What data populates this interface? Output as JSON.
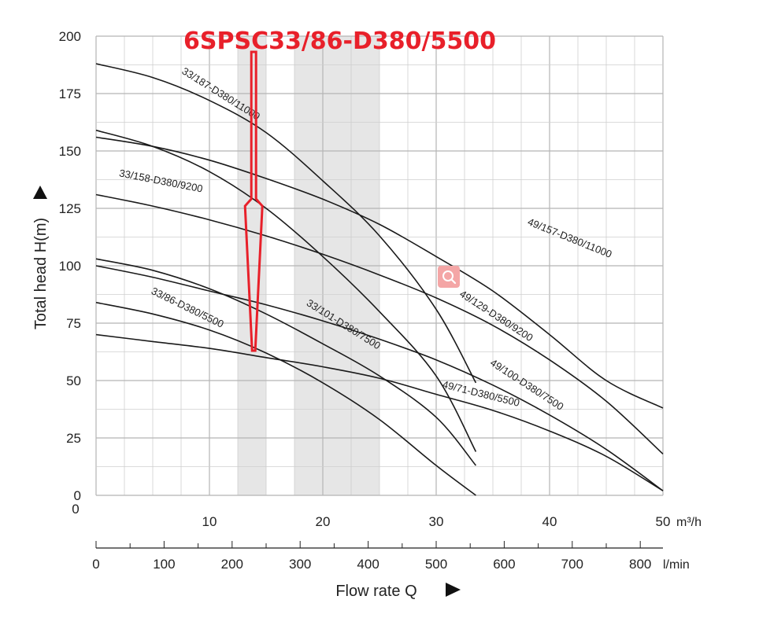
{
  "chart_data": {
    "type": "line",
    "title": "6SPSC33/86-D380/5500",
    "ylabel": "Total head H(m)",
    "xlabel": "Flow rate Q",
    "x_unit": "m³/h",
    "x2_unit": "l/min",
    "xlim": [
      0,
      50
    ],
    "ylim": [
      0,
      200
    ],
    "x_ticks": [
      0,
      10,
      20,
      30,
      40,
      50
    ],
    "x_tick_labels": [
      "10",
      "20",
      "30",
      "40",
      "50"
    ],
    "y_ticks": [
      0,
      25,
      50,
      75,
      100,
      125,
      150,
      175,
      200
    ],
    "y_tick_labels": [
      "0",
      "25",
      "50",
      "75",
      "100",
      "125",
      "150",
      "175",
      "200"
    ],
    "x2_ticks": [
      0,
      100,
      200,
      300,
      400,
      500,
      600,
      700,
      800
    ],
    "x2_tick_labels": [
      "0",
      "100",
      "200",
      "300",
      "400",
      "500",
      "600",
      "700",
      "800"
    ],
    "grid": true,
    "shaded_bands_x": [
      [
        12.5,
        15
      ],
      [
        17.5,
        25
      ]
    ],
    "arrow_target": {
      "x": 13.9,
      "y": 63
    },
    "series": [
      {
        "name": "33/187-D380/11000",
        "points": [
          [
            0,
            188
          ],
          [
            5,
            182
          ],
          [
            10,
            172
          ],
          [
            15,
            158
          ],
          [
            20,
            137
          ],
          [
            25,
            113
          ],
          [
            30,
            81
          ],
          [
            33.5,
            49
          ]
        ]
      },
      {
        "name": "33/158-D380/9200",
        "points": [
          [
            0,
            159
          ],
          [
            5,
            152
          ],
          [
            10,
            141
          ],
          [
            15,
            125
          ],
          [
            20,
            104
          ],
          [
            25,
            80
          ],
          [
            30,
            52
          ],
          [
            33.5,
            19
          ]
        ]
      },
      {
        "name": "33/101-D380/7500",
        "points": [
          [
            0,
            103
          ],
          [
            5,
            98
          ],
          [
            10,
            90
          ],
          [
            15,
            79
          ],
          [
            20,
            66
          ],
          [
            25,
            52
          ],
          [
            30,
            34
          ],
          [
            33.5,
            13
          ]
        ]
      },
      {
        "name": "33/86-D380/5500",
        "points": [
          [
            0,
            84
          ],
          [
            5,
            79
          ],
          [
            10,
            72
          ],
          [
            15,
            62
          ],
          [
            20,
            49
          ],
          [
            25,
            33
          ],
          [
            30,
            13
          ],
          [
            33.5,
            0
          ]
        ]
      },
      {
        "name": "49/157-D380/11000",
        "points": [
          [
            0,
            156
          ],
          [
            5,
            152
          ],
          [
            10,
            146
          ],
          [
            15,
            138
          ],
          [
            20,
            129
          ],
          [
            25,
            118
          ],
          [
            30,
            104
          ],
          [
            35,
            89
          ],
          [
            40,
            70
          ],
          [
            45,
            50
          ],
          [
            50,
            38
          ]
        ]
      },
      {
        "name": "49/129-D380/9200",
        "points": [
          [
            0,
            131
          ],
          [
            5,
            126
          ],
          [
            10,
            120
          ],
          [
            15,
            113
          ],
          [
            20,
            105
          ],
          [
            25,
            96
          ],
          [
            30,
            86
          ],
          [
            35,
            74
          ],
          [
            40,
            59
          ],
          [
            45,
            41
          ],
          [
            50,
            18
          ]
        ]
      },
      {
        "name": "49/100-D380/7500",
        "points": [
          [
            0,
            100
          ],
          [
            5,
            95
          ],
          [
            10,
            89
          ],
          [
            15,
            83
          ],
          [
            20,
            76
          ],
          [
            25,
            68
          ],
          [
            30,
            59
          ],
          [
            35,
            48
          ],
          [
            40,
            35
          ],
          [
            45,
            20
          ],
          [
            50,
            2
          ]
        ]
      },
      {
        "name": "49/71-D380/5500",
        "points": [
          [
            0,
            70
          ],
          [
            5,
            67
          ],
          [
            10,
            64
          ],
          [
            15,
            60
          ],
          [
            20,
            56
          ],
          [
            25,
            51
          ],
          [
            30,
            44
          ],
          [
            35,
            37
          ],
          [
            40,
            28
          ],
          [
            45,
            17
          ],
          [
            50,
            2
          ]
        ]
      }
    ],
    "labels": [
      {
        "text": "33/187-D380/11000",
        "x": 7.5,
        "y": 184,
        "angle": 32
      },
      {
        "text": "33/158-D380/9200",
        "x": 2,
        "y": 139,
        "angle": 11
      },
      {
        "text": "49/157-D380/11000",
        "x": 38,
        "y": 118,
        "angle": 22
      },
      {
        "text": "49/129-D380/9200",
        "x": 32,
        "y": 87,
        "angle": 33
      },
      {
        "text": "33/101-D380/7500",
        "x": 18.5,
        "y": 83,
        "angle": 32
      },
      {
        "text": "33/86-D380/5500",
        "x": 4.8,
        "y": 88,
        "angle": 26
      },
      {
        "text": "49/100-D380/7500",
        "x": 34.7,
        "y": 57,
        "angle": 33
      },
      {
        "text": "49/71-D380/5500",
        "x": 30.5,
        "y": 47,
        "angle": 14
      }
    ]
  },
  "search_icon": "search-icon",
  "colors": {
    "highlight": "#e8202a",
    "band": "#e6e6e6",
    "grid": "#cfcfcf",
    "curve": "#1a1a1a",
    "icon_bg": "#f4a6a6"
  }
}
